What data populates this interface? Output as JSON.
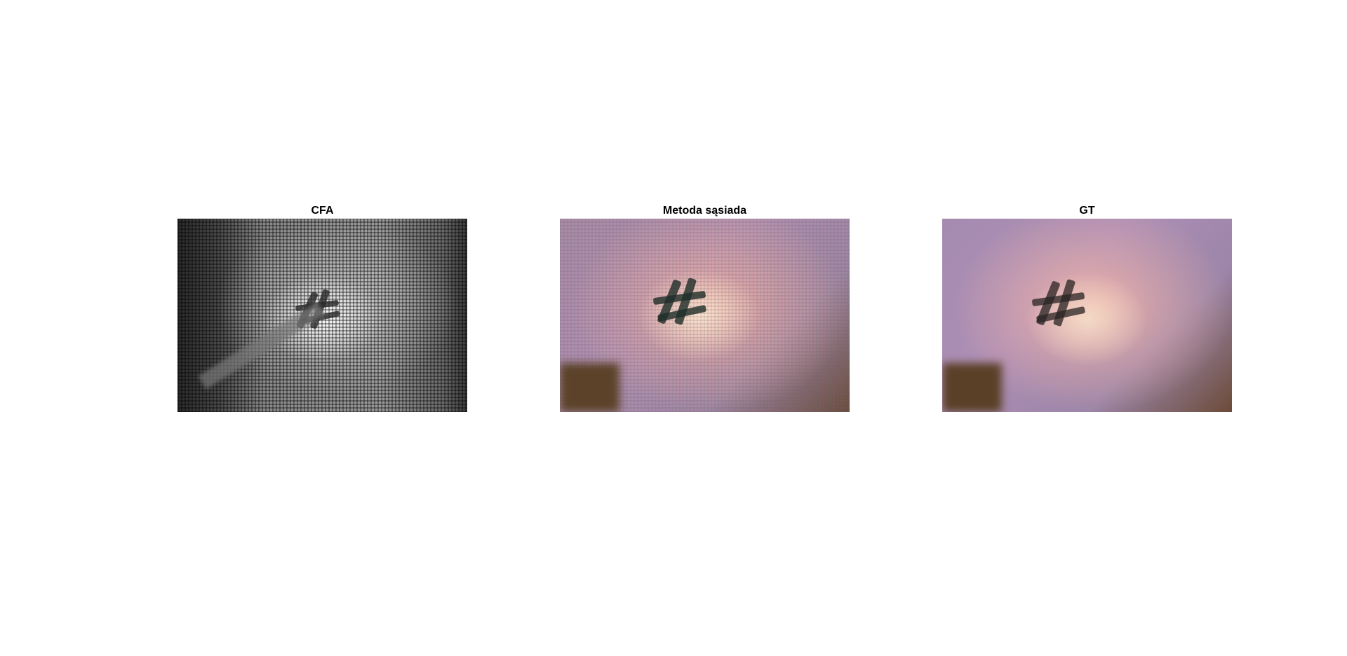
{
  "panels": [
    {
      "title": "CFA"
    },
    {
      "title": "Metoda sąsiada"
    },
    {
      "title": "GT"
    }
  ]
}
